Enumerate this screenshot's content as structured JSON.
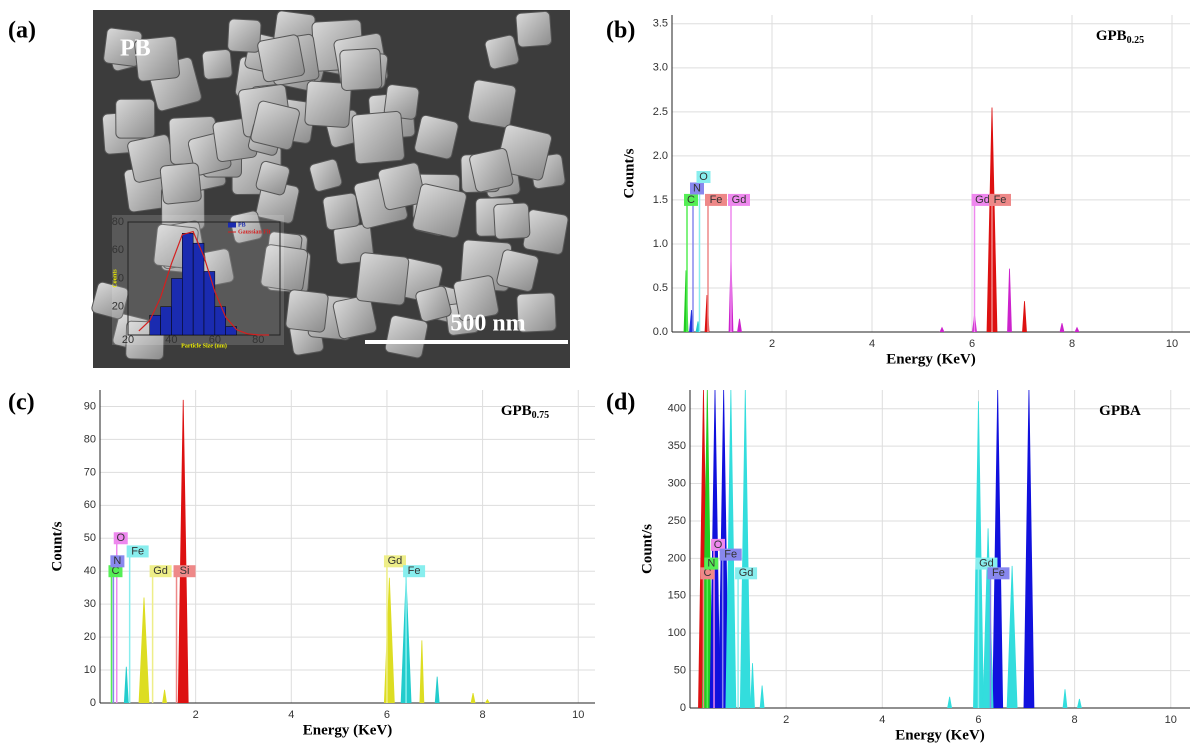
{
  "panel_labels": [
    "(a)",
    "(b)",
    "(c)",
    "(d)"
  ],
  "image": {
    "label": "PB",
    "scale_bar": "500 nm"
  },
  "chart_data": [
    {
      "type": "histogram",
      "xlabel": "Particle Size (nm)",
      "ylabel": "Counts",
      "bins": [
        30,
        35,
        40,
        45,
        50,
        55,
        60,
        65,
        70
      ],
      "xlim": [
        20,
        90
      ],
      "ylim": [
        0,
        80
      ],
      "xticks": [
        20,
        40,
        60,
        80
      ],
      "yticks": [
        20,
        40,
        60,
        80
      ],
      "series": [
        {
          "name": "PB",
          "color": "#1a2bb0",
          "values": [
            14,
            20,
            40,
            72,
            65,
            45,
            20,
            6
          ]
        },
        {
          "name": "Gaussian Fit",
          "color": "#d42020",
          "type": "line",
          "x": [
            25,
            30,
            35,
            40,
            45,
            50,
            55,
            60,
            65,
            70,
            75,
            80,
            85
          ],
          "values": [
            2.9,
            10.2,
            26.5,
            50.5,
            71,
            73.2,
            55.4,
            30.8,
            12.6,
            3.8,
            0.8,
            0.1,
            0
          ]
        }
      ]
    },
    {
      "type": "spectrum",
      "title": "GPB",
      "title_sub": "0.25",
      "xlabel": "Energy (KeV)",
      "ylabel": "Count/s",
      "xlim": [
        0,
        10.36
      ],
      "ylim": [
        0,
        3.6
      ],
      "xticks": [
        2,
        4,
        6,
        8,
        10
      ],
      "yticks": [
        {
          "value": 0,
          "label": "0.0"
        },
        {
          "value": 0.5,
          "label": "0.5"
        },
        {
          "value": 1,
          "label": "1.0"
        },
        {
          "value": 1.5,
          "label": "1.5"
        },
        {
          "value": 2,
          "label": "2.0"
        },
        {
          "value": 2.5,
          "label": "2.5"
        },
        {
          "value": 3,
          "label": "3.0"
        },
        {
          "value": 3.5,
          "label": "3.5"
        }
      ],
      "grid": true,
      "series": [
        {
          "color": "#22cc22",
          "x": [
            0.28
          ],
          "values": [
            0.7
          ]
        },
        {
          "color": "#2233dd",
          "x": [
            0.39
          ],
          "values": [
            0.25
          ]
        },
        {
          "color": "#22cccc",
          "x": [
            0.52
          ],
          "values": [
            0.12
          ]
        },
        {
          "color": "#dd1111",
          "x": [
            0.7,
            6.4,
            7.05
          ],
          "values": [
            0.42,
            2.55,
            0.35
          ]
        },
        {
          "color": "#cc22cc",
          "x": [
            1.18,
            1.35,
            5.4,
            6.05,
            6.75,
            7.8,
            8.1
          ],
          "values": [
            0.85,
            0.15,
            0.05,
            0.2,
            0.72,
            0.1,
            0.05
          ]
        }
      ],
      "annotations": [
        {
          "text": "C",
          "x": 0.3,
          "y": 1.5,
          "color": "#55ee55"
        },
        {
          "text": "N",
          "x": 0.42,
          "y": 1.63,
          "color": "#8888ee"
        },
        {
          "text": "O",
          "x": 0.55,
          "y": 1.76,
          "color": "#88eeee"
        },
        {
          "text": "Fe",
          "x": 0.72,
          "y": 1.5,
          "color": "#ee8888"
        },
        {
          "text": "Gd",
          "x": 1.18,
          "y": 1.5,
          "color": "#ee88ee"
        },
        {
          "text": "Gd",
          "x": 6.05,
          "y": 1.5,
          "color": "#ee88ee"
        },
        {
          "text": "Fe",
          "x": 6.4,
          "y": 1.5,
          "color": "#ee8888"
        }
      ]
    },
    {
      "type": "spectrum",
      "title": "GPB",
      "title_sub": "0.75",
      "xlabel": "Energy (KeV)",
      "ylabel": "Count/s",
      "xlim": [
        0,
        10.35
      ],
      "ylim": [
        0,
        95
      ],
      "xticks": [
        2,
        4,
        6,
        8,
        10
      ],
      "yticks": [
        0,
        10,
        20,
        30,
        40,
        50,
        60,
        70,
        80,
        90
      ],
      "grid": true,
      "series": [
        {
          "color": "#dd1111",
          "x": [
            1.74
          ],
          "values": [
            92
          ]
        },
        {
          "color": "#22cccc",
          "x": [
            0.55,
            6.4,
            7.05
          ],
          "values": [
            11,
            38,
            8
          ]
        },
        {
          "color": "#dddd22",
          "x": [
            0.92,
            1.35,
            6.05,
            6.73,
            7.8,
            8.1
          ],
          "values": [
            32,
            4,
            38,
            19,
            3,
            1
          ]
        }
      ],
      "annotations": [
        {
          "text": "C",
          "x": 0.24,
          "y": 40,
          "color": "#55ee55"
        },
        {
          "text": "N",
          "x": 0.28,
          "y": 43,
          "color": "#8888ee"
        },
        {
          "text": "O",
          "x": 0.35,
          "y": 50,
          "color": "#ee88ee"
        },
        {
          "text": "Fe",
          "x": 0.62,
          "y": 46,
          "color": "#88eeee"
        },
        {
          "text": "Gd",
          "x": 1.1,
          "y": 40,
          "color": "#eeee88"
        },
        {
          "text": "Si",
          "x": 1.6,
          "y": 40,
          "color": "#ee8888"
        },
        {
          "text": "Gd",
          "x": 6.0,
          "y": 43,
          "color": "#eeee88"
        },
        {
          "text": "Fe",
          "x": 6.4,
          "y": 40,
          "color": "#88eeee"
        }
      ]
    },
    {
      "type": "spectrum",
      "title": "GPBA",
      "xlabel": "Energy (KeV)",
      "ylabel": "Count/s",
      "xlim": [
        0,
        10.4
      ],
      "ylim": [
        0,
        425
      ],
      "xticks": [
        2,
        4,
        6,
        8,
        10
      ],
      "yticks": [
        0,
        50,
        100,
        150,
        200,
        250,
        300,
        350,
        400
      ],
      "grid": true,
      "series": [
        {
          "color": "#dd1111",
          "x": [
            0.28
          ],
          "values": [
            425
          ]
        },
        {
          "color": "#22cc22",
          "x": [
            0.36
          ],
          "values": [
            425
          ]
        },
        {
          "color": "#1111dd",
          "x": [
            0.52,
            0.7,
            6.4,
            7.05
          ],
          "values": [
            425,
            425,
            425,
            425
          ]
        },
        {
          "color": "#33dddd",
          "x": [
            0.85,
            1.15,
            1.3,
            1.5,
            5.4,
            6.0,
            6.2,
            6.7,
            7.8,
            8.1
          ],
          "values": [
            425,
            425,
            60,
            30,
            15,
            410,
            240,
            190,
            25,
            12
          ]
        }
      ],
      "annotations": [
        {
          "text": "C",
          "x": 0.28,
          "y": 180,
          "color": "#ee8888"
        },
        {
          "text": "N",
          "x": 0.36,
          "y": 193,
          "color": "#55ee55"
        },
        {
          "text": "O",
          "x": 0.5,
          "y": 218,
          "color": "#ee88ee"
        },
        {
          "text": "Fe",
          "x": 0.68,
          "y": 205,
          "color": "#8888ee"
        },
        {
          "text": "Gd",
          "x": 1.0,
          "y": 180,
          "color": "#88eeee"
        },
        {
          "text": "Gd",
          "x": 6.0,
          "y": 193,
          "color": "#88eeee"
        },
        {
          "text": "Fe",
          "x": 6.25,
          "y": 180,
          "color": "#8888ee"
        }
      ]
    }
  ]
}
